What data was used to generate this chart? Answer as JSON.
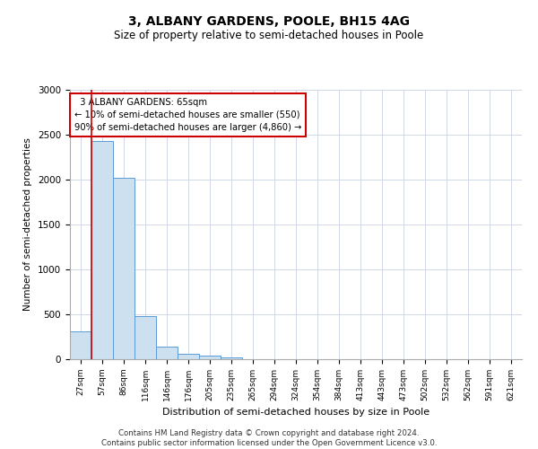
{
  "title": "3, ALBANY GARDENS, POOLE, BH15 4AG",
  "subtitle": "Size of property relative to semi-detached houses in Poole",
  "xlabel": "Distribution of semi-detached houses by size in Poole",
  "ylabel": "Number of semi-detached properties",
  "categories": [
    "27sqm",
    "57sqm",
    "86sqm",
    "116sqm",
    "146sqm",
    "176sqm",
    "205sqm",
    "235sqm",
    "265sqm",
    "294sqm",
    "324sqm",
    "354sqm",
    "384sqm",
    "413sqm",
    "443sqm",
    "473sqm",
    "502sqm",
    "532sqm",
    "562sqm",
    "591sqm",
    "621sqm"
  ],
  "values": [
    310,
    2430,
    2020,
    480,
    140,
    65,
    40,
    25,
    0,
    0,
    0,
    0,
    0,
    0,
    0,
    0,
    0,
    0,
    0,
    0,
    0
  ],
  "bar_color": "#cce0f0",
  "bar_edge_color": "#5b9bd5",
  "property_label": "3 ALBANY GARDENS: 65sqm",
  "pct_smaller": 10,
  "count_smaller": 550,
  "pct_larger": 90,
  "count_larger": 4860,
  "property_line_x": 1.0,
  "ylim": [
    0,
    3000
  ],
  "yticks": [
    0,
    500,
    1000,
    1500,
    2000,
    2500,
    3000
  ],
  "annotation_box_color": "#ffffff",
  "annotation_box_edge": "#cc0000",
  "grid_color": "#d0d8e8",
  "title_fontsize": 10,
  "subtitle_fontsize": 8.5,
  "footer_line1": "Contains HM Land Registry data © Crown copyright and database right 2024.",
  "footer_line2": "Contains public sector information licensed under the Open Government Licence v3.0."
}
